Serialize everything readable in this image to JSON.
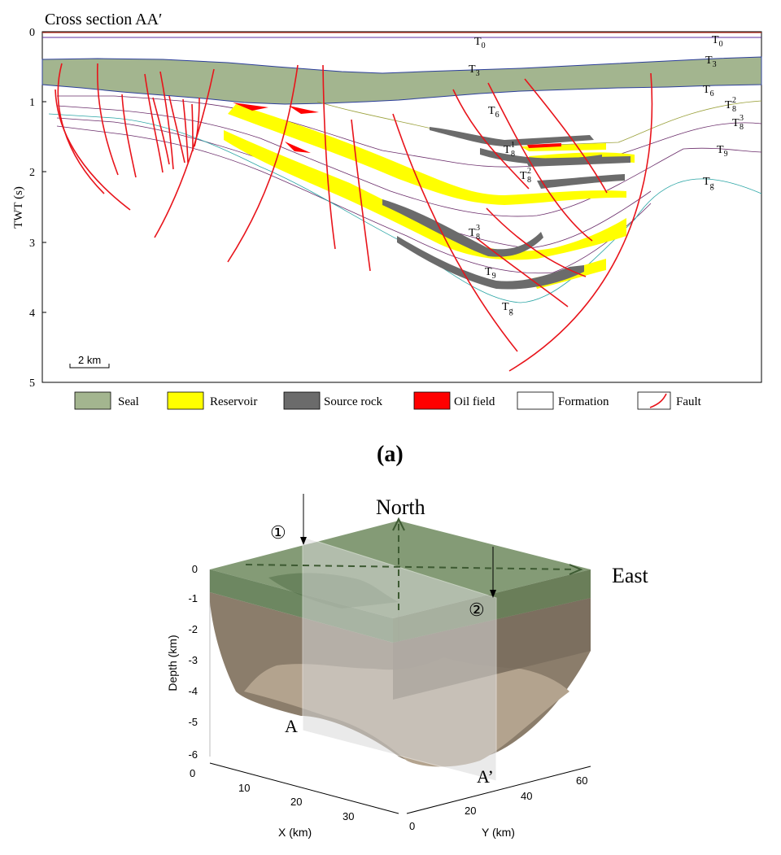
{
  "panel_a": {
    "title": "Cross section AA′",
    "y_axis_label": "TWT (s)",
    "y_ticks": [
      "0",
      "1",
      "2",
      "3",
      "4",
      "5"
    ],
    "scale_bar": "2 km",
    "horizons": [
      {
        "text": "T",
        "sub": "0",
        "sup": ""
      },
      {
        "text": "T",
        "sub": "0",
        "sup": ""
      },
      {
        "text": "T",
        "sub": "3",
        "sup": ""
      },
      {
        "text": "T",
        "sub": "3",
        "sup": ""
      },
      {
        "text": "T",
        "sub": "6",
        "sup": ""
      },
      {
        "text": "T",
        "sub": "6",
        "sup": ""
      },
      {
        "text": "T",
        "sub": "8",
        "sup": "2"
      },
      {
        "text": "T",
        "sub": "8",
        "sup": "3"
      },
      {
        "text": "T",
        "sub": "8",
        "sup": "1"
      },
      {
        "text": "T",
        "sub": "8",
        "sup": "2"
      },
      {
        "text": "T",
        "sub": "9",
        "sup": ""
      },
      {
        "text": "T",
        "sub": "g",
        "sup": ""
      },
      {
        "text": "T",
        "sub": "8",
        "sup": "3"
      },
      {
        "text": "T",
        "sub": "9",
        "sup": ""
      },
      {
        "text": "T",
        "sub": "g",
        "sup": ""
      }
    ],
    "legend": [
      {
        "label": "Seal",
        "color": "#a3b58f"
      },
      {
        "label": "Reservoir",
        "color": "#ffff00"
      },
      {
        "label": "Source rock",
        "color": "#6b6b6b"
      },
      {
        "label": "Oil field",
        "color": "#ff0000"
      },
      {
        "label": "Formation",
        "color": "#ffffff"
      },
      {
        "label": "Fault",
        "color": "#ff0000"
      }
    ],
    "panel_label": "(a)"
  },
  "panel_b": {
    "north_label": "North",
    "east_label": "East",
    "marker_1": "①",
    "marker_2": "②",
    "label_a": "A",
    "label_a_prime": "A’",
    "depth_axis_label": "Depth (km)",
    "depth_ticks": [
      "0",
      "-1",
      "-2",
      "-3",
      "-4",
      "-5",
      "-6"
    ],
    "x_axis_label": "X (km)",
    "x_ticks": [
      "0",
      "10",
      "20",
      "30"
    ],
    "y_axis_label": "Y (km)",
    "y_ticks": [
      "0",
      "20",
      "40",
      "60"
    ],
    "colors": {
      "seal": "#6f8a5e",
      "basin": "#8b7d6b",
      "label_green": "#3d5a32"
    }
  }
}
